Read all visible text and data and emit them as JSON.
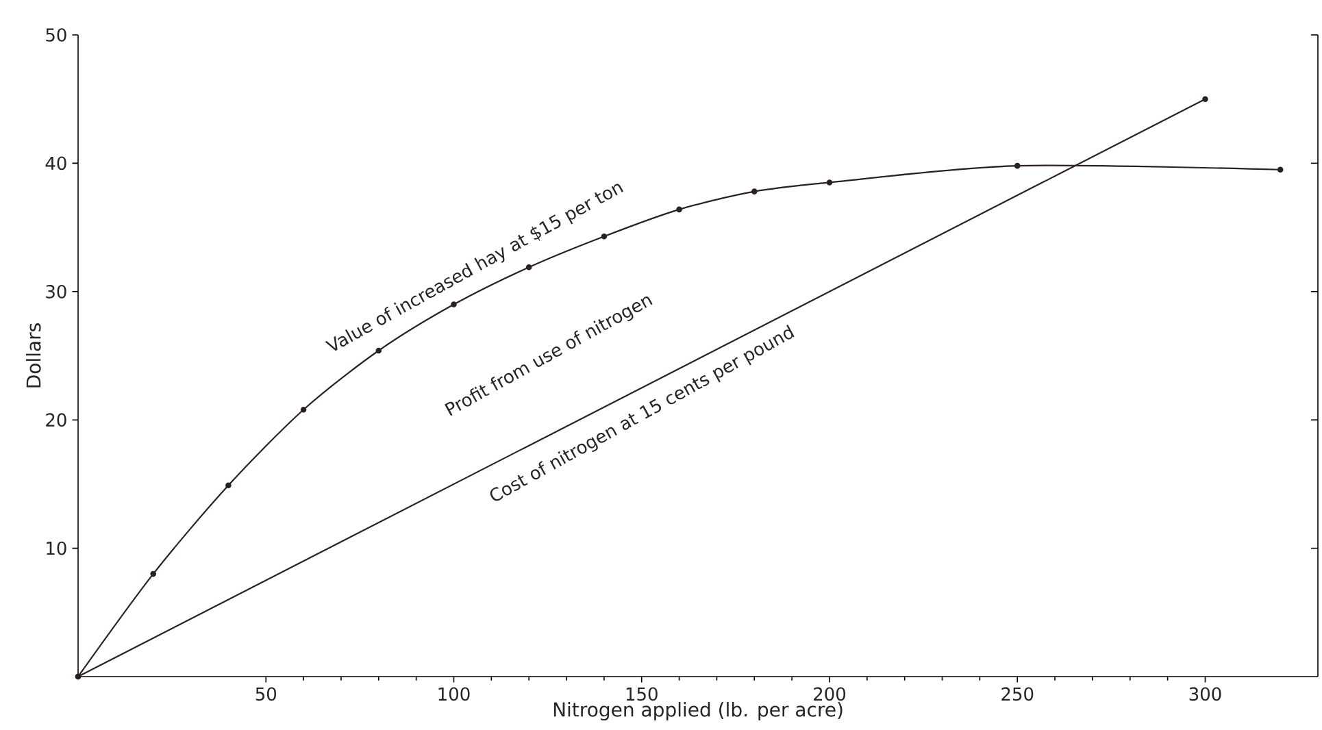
{
  "chart_data": {
    "type": "line",
    "xlabel": "Nitrogen applied (lb. per acre)",
    "ylabel": "Dollars",
    "xlim": [
      0,
      330
    ],
    "ylim": [
      0,
      50
    ],
    "xticks": [
      50,
      100,
      150,
      200,
      250,
      300
    ],
    "yticks": [
      10,
      20,
      30,
      40,
      50
    ],
    "marker": "circle",
    "line_style": "solid",
    "grid": false,
    "series": [
      {
        "name": "Value of increased hay at $15 per ton",
        "color": "#2a2220",
        "x": [
          0,
          20,
          40,
          60,
          80,
          100,
          120,
          140,
          160,
          180,
          200,
          250,
          320
        ],
        "values": [
          0,
          8,
          14.9,
          20.8,
          25.4,
          29,
          31.9,
          34.3,
          36.4,
          37.8,
          38.5,
          39.8,
          39.5
        ]
      },
      {
        "name": "Cost of nitrogen at 15 cents per pound",
        "color": "#2a2220",
        "x": [
          0,
          300
        ],
        "values": [
          0,
          45
        ]
      }
    ],
    "annotations": [
      "Profit from use of nitrogen"
    ]
  }
}
